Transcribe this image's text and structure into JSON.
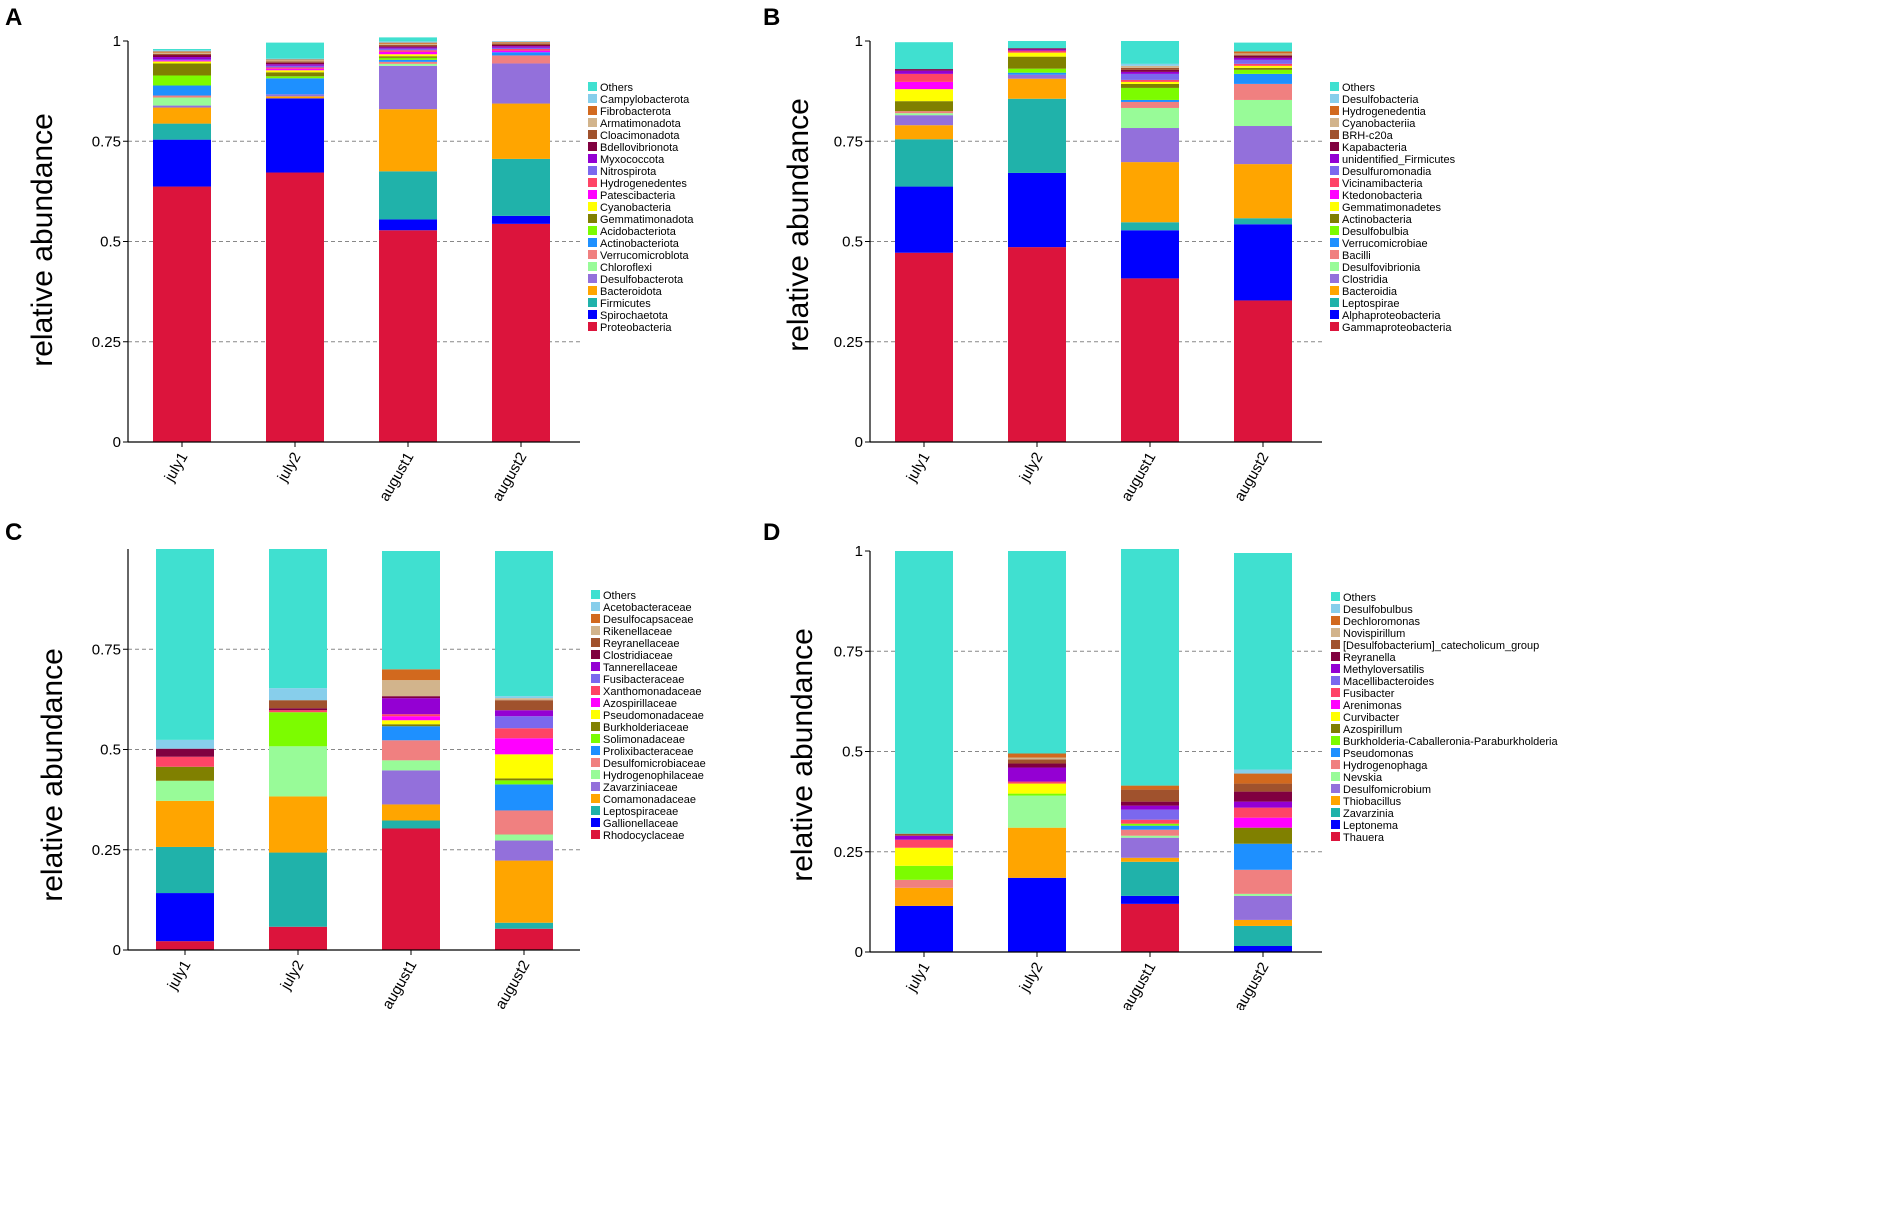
{
  "figure_panels": [
    "A",
    "B",
    "C",
    "D"
  ],
  "chart_data": [
    {
      "panel": "A",
      "type": "bar",
      "stacked": true,
      "ylabel": "relative abundance",
      "ylim": [
        0,
        1
      ],
      "yticks": [
        0,
        0.25,
        0.5,
        0.75,
        1
      ],
      "ytick_labels": [
        "0",
        "0.25",
        "0.5",
        "0.75",
        "1"
      ],
      "grid": "dashed",
      "legend_position": "right",
      "categories": [
        "july1",
        "july2",
        "august1",
        "august2"
      ],
      "series": [
        {
          "name": "Proteobacteria",
          "color": "#DC143C",
          "values": [
            0.637,
            0.672,
            0.528,
            0.544
          ]
        },
        {
          "name": "Spirochaetota",
          "color": "#0000FF",
          "values": [
            0.117,
            0.185,
            0.027,
            0.02
          ]
        },
        {
          "name": "Firmicutes",
          "color": "#20B2AA",
          "values": [
            0.04,
            0.0,
            0.12,
            0.142
          ]
        },
        {
          "name": "Bacteroidota",
          "color": "#FFA500",
          "values": [
            0.04,
            0.005,
            0.155,
            0.138
          ]
        },
        {
          "name": "Desulfobacterota",
          "color": "#9370DB",
          "values": [
            0.005,
            0.005,
            0.108,
            0.1
          ]
        },
        {
          "name": "Chloroflexi",
          "color": "#98FB98",
          "values": [
            0.02,
            0.0,
            0.005,
            0.0
          ]
        },
        {
          "name": "Verrucomicroblota",
          "color": "#F08080",
          "values": [
            0.005,
            0.0,
            0.005,
            0.02
          ]
        },
        {
          "name": "Actinobacteriota",
          "color": "#1E90FF",
          "values": [
            0.025,
            0.04,
            0.005,
            0.008
          ]
        },
        {
          "name": "Acidobacteriota",
          "color": "#7CFC00",
          "values": [
            0.025,
            0.005,
            0.005,
            0.0
          ]
        },
        {
          "name": "Gemmatimonadota",
          "color": "#808000",
          "values": [
            0.03,
            0.01,
            0.004,
            0.0
          ]
        },
        {
          "name": "Cyanobacteria",
          "color": "#FFFF00",
          "values": [
            0.005,
            0.005,
            0.005,
            0.0
          ]
        },
        {
          "name": "Patescibacteria",
          "color": "#FF00FF",
          "values": [
            0.003,
            0.004,
            0.006,
            0.004
          ]
        },
        {
          "name": "Hydrogenedentes",
          "color": "#FF4466",
          "values": [
            0.0,
            0.003,
            0.004,
            0.004
          ]
        },
        {
          "name": "Nitrospirota",
          "color": "#7B68EE",
          "values": [
            0.002,
            0.004,
            0.004,
            0.003
          ]
        },
        {
          "name": "Myxococcota",
          "color": "#9400D3",
          "values": [
            0.006,
            0.004,
            0.003,
            0.004
          ]
        },
        {
          "name": "Bdellovibrionota",
          "color": "#800040",
          "values": [
            0.005,
            0.004,
            0.003,
            0.003
          ]
        },
        {
          "name": "Cloacimonadota",
          "color": "#A0522D",
          "values": [
            0.003,
            0.003,
            0.003,
            0.004
          ]
        },
        {
          "name": "Armatimonadota",
          "color": "#D2B48C",
          "values": [
            0.003,
            0.003,
            0.003,
            0.002
          ]
        },
        {
          "name": "Fibrobacterota",
          "color": "#D2691E",
          "values": [
            0.003,
            0.002,
            0.003,
            0.002
          ]
        },
        {
          "name": "Campylobacterota",
          "color": "#87CEEB",
          "values": [
            0.003,
            0.002,
            0.003,
            0.002
          ]
        },
        {
          "name": "Others",
          "color": "#40E0D0",
          "values": [
            0.003,
            0.04,
            0.01,
            0.0
          ]
        }
      ]
    },
    {
      "panel": "B",
      "type": "bar",
      "stacked": true,
      "ylabel": "relative abundance",
      "ylim": [
        0,
        1
      ],
      "yticks": [
        0,
        0.25,
        0.5,
        0.75,
        1
      ],
      "ytick_labels": [
        "0",
        "0.25",
        "0.5",
        "0.75",
        "1"
      ],
      "grid": "dashed",
      "legend_position": "right",
      "categories": [
        "july1",
        "july2",
        "august1",
        "august2"
      ],
      "series": [
        {
          "name": "Gammaproteobacteria",
          "color": "#DC143C",
          "values": [
            0.472,
            0.486,
            0.408,
            0.353
          ]
        },
        {
          "name": "Alphaproteobacteria",
          "color": "#0000FF",
          "values": [
            0.165,
            0.185,
            0.12,
            0.19
          ]
        },
        {
          "name": "Leptospirae",
          "color": "#20B2AA",
          "values": [
            0.118,
            0.185,
            0.02,
            0.015
          ]
        },
        {
          "name": "Bacteroidia",
          "color": "#FFA500",
          "values": [
            0.035,
            0.05,
            0.15,
            0.135
          ]
        },
        {
          "name": "Clostridia",
          "color": "#9370DB",
          "values": [
            0.025,
            0.01,
            0.085,
            0.095
          ]
        },
        {
          "name": "Desulfovibrionia",
          "color": "#98FB98",
          "values": [
            0.005,
            0.0,
            0.05,
            0.065
          ]
        },
        {
          "name": "Bacilli",
          "color": "#F08080",
          "values": [
            0.005,
            0.0,
            0.015,
            0.04
          ]
        },
        {
          "name": "Verrucomicrobiae",
          "color": "#1E90FF",
          "values": [
            0.0,
            0.005,
            0.005,
            0.025
          ]
        },
        {
          "name": "Desulfobulbia",
          "color": "#7CFC00",
          "values": [
            0.0,
            0.01,
            0.03,
            0.01
          ]
        },
        {
          "name": "Actinobacteria",
          "color": "#808000",
          "values": [
            0.025,
            0.03,
            0.01,
            0.005
          ]
        },
        {
          "name": "Gemmatimonadetes",
          "color": "#FFFF00",
          "values": [
            0.03,
            0.01,
            0.005,
            0.005
          ]
        },
        {
          "name": "Ktedonobacteria",
          "color": "#FF00FF",
          "values": [
            0.018,
            0.0,
            0.0,
            0.0
          ]
        },
        {
          "name": "Vicinamibacteria",
          "color": "#FF4466",
          "values": [
            0.02,
            0.005,
            0.005,
            0.005
          ]
        },
        {
          "name": "Desulfuromonadia",
          "color": "#7B68EE",
          "values": [
            0.0,
            0.0,
            0.015,
            0.01
          ]
        },
        {
          "name": "unidentified_Firmicutes",
          "color": "#9400D3",
          "values": [
            0.008,
            0.003,
            0.005,
            0.005
          ]
        },
        {
          "name": "Kapabacteria",
          "color": "#800040",
          "values": [
            0.004,
            0.003,
            0.005,
            0.005
          ]
        },
        {
          "name": "BRH-c20a",
          "color": "#A0522D",
          "values": [
            0.0,
            0.0,
            0.005,
            0.003
          ]
        },
        {
          "name": "Cyanobacteriia",
          "color": "#D2B48C",
          "values": [
            0.0,
            0.0,
            0.005,
            0.003
          ]
        },
        {
          "name": "Hydrogenedentia",
          "color": "#D2691E",
          "values": [
            0.0,
            0.0,
            0.0,
            0.005
          ]
        },
        {
          "name": "Desulfobacteria",
          "color": "#87CEEB",
          "values": [
            0.0,
            0.0,
            0.005,
            0.0
          ]
        },
        {
          "name": "Others",
          "color": "#40E0D0",
          "values": [
            0.067,
            0.018,
            0.057,
            0.022
          ]
        }
      ]
    },
    {
      "panel": "C",
      "type": "bar",
      "stacked": true,
      "ylabel": "relative abundance",
      "ylim": [
        0,
        1
      ],
      "yticks": [
        0,
        0.25,
        0.5,
        0.75
      ],
      "ytick_labels": [
        "0",
        "0.25",
        "0.5",
        "0.75"
      ],
      "grid": "dashed",
      "legend_position": "right",
      "categories": [
        "july1",
        "july2",
        "august1",
        "august2"
      ],
      "series": [
        {
          "name": "Rhodocyclaceae",
          "color": "#DC143C",
          "values": [
            0.022,
            0.058,
            0.303,
            0.053
          ]
        },
        {
          "name": "Gallionellaceae",
          "color": "#0000FF",
          "values": [
            0.12,
            0.0,
            0.0,
            0.0
          ]
        },
        {
          "name": "Leptospiraceae",
          "color": "#20B2AA",
          "values": [
            0.115,
            0.185,
            0.02,
            0.015
          ]
        },
        {
          "name": "Comamonadaceae",
          "color": "#FFA500",
          "values": [
            0.115,
            0.14,
            0.04,
            0.155
          ]
        },
        {
          "name": "Zavarziniaceae",
          "color": "#9370DB",
          "values": [
            0.0,
            0.0,
            0.085,
            0.05
          ]
        },
        {
          "name": "Hydrogenophilaceae",
          "color": "#98FB98",
          "values": [
            0.05,
            0.125,
            0.025,
            0.015
          ]
        },
        {
          "name": "Desulfomicrobiaceae",
          "color": "#F08080",
          "values": [
            0.0,
            0.0,
            0.05,
            0.06
          ]
        },
        {
          "name": "Prolixibacteraceae",
          "color": "#1E90FF",
          "values": [
            0.0,
            0.0,
            0.035,
            0.065
          ]
        },
        {
          "name": "Solimonadaceae",
          "color": "#7CFC00",
          "values": [
            0.0,
            0.085,
            0.0,
            0.01
          ]
        },
        {
          "name": "Burkholderiaceae",
          "color": "#808000",
          "values": [
            0.035,
            0.0,
            0.005,
            0.005
          ]
        },
        {
          "name": "Pseudomonadaceae",
          "color": "#FFFF00",
          "values": [
            0.0,
            0.0,
            0.01,
            0.06
          ]
        },
        {
          "name": "Azospirillaceae",
          "color": "#FF00FF",
          "values": [
            0.0,
            0.0,
            0.01,
            0.04
          ]
        },
        {
          "name": "Xanthomonadaceae",
          "color": "#FF4466",
          "values": [
            0.025,
            0.005,
            0.005,
            0.025
          ]
        },
        {
          "name": "Fusibacteraceae",
          "color": "#7B68EE",
          "values": [
            0.0,
            0.0,
            0.0,
            0.03
          ]
        },
        {
          "name": "Tannerellaceae",
          "color": "#9400D3",
          "values": [
            0.0,
            0.0,
            0.04,
            0.015
          ]
        },
        {
          "name": "Clostridiaceae",
          "color": "#800040",
          "values": [
            0.02,
            0.005,
            0.005,
            0.0
          ]
        },
        {
          "name": "Reyranellaceae",
          "color": "#A0522D",
          "values": [
            0.0,
            0.02,
            0.0,
            0.025
          ]
        },
        {
          "name": "Rikenellaceae",
          "color": "#D2B48C",
          "values": [
            0.0,
            0.0,
            0.04,
            0.005
          ]
        },
        {
          "name": "Desulfocapsaceae",
          "color": "#D2691E",
          "values": [
            0.0,
            0.0,
            0.027,
            0.0
          ]
        },
        {
          "name": "Acetobacteraceae",
          "color": "#87CEEB",
          "values": [
            0.022,
            0.03,
            0.0,
            0.005
          ]
        },
        {
          "name": "Others",
          "color": "#40E0D0",
          "values": [
            0.476,
            0.347,
            0.295,
            0.362
          ]
        }
      ]
    },
    {
      "panel": "D",
      "type": "bar",
      "stacked": true,
      "ylabel": "relative abundance",
      "ylim": [
        0,
        1
      ],
      "yticks": [
        0,
        0.25,
        0.5,
        0.75,
        1
      ],
      "ytick_labels": [
        "0",
        "0.25",
        "0.5",
        "0.75",
        "1"
      ],
      "grid": "dashed",
      "legend_position": "right",
      "categories": [
        "july1",
        "july2",
        "august1",
        "august2"
      ],
      "series": [
        {
          "name": "Thauera",
          "color": "#DC143C",
          "values": [
            0.0,
            0.0,
            0.12,
            0.0
          ]
        },
        {
          "name": "Leptonema",
          "color": "#0000FF",
          "values": [
            0.115,
            0.185,
            0.02,
            0.015
          ]
        },
        {
          "name": "Zavarzinia",
          "color": "#20B2AA",
          "values": [
            0.0,
            0.0,
            0.085,
            0.05
          ]
        },
        {
          "name": "Thiobacillus",
          "color": "#FFA500",
          "values": [
            0.045,
            0.125,
            0.01,
            0.015
          ]
        },
        {
          "name": "Desulfomicrobium",
          "color": "#9370DB",
          "values": [
            0.0,
            0.0,
            0.05,
            0.06
          ]
        },
        {
          "name": "Nevskia",
          "color": "#98FB98",
          "values": [
            0.0,
            0.08,
            0.005,
            0.005
          ]
        },
        {
          "name": "Hydrogenophaga",
          "color": "#F08080",
          "values": [
            0.02,
            0.0,
            0.015,
            0.06
          ]
        },
        {
          "name": "Pseudomonas",
          "color": "#1E90FF",
          "values": [
            0.0,
            0.0,
            0.01,
            0.065
          ]
        },
        {
          "name": "Burkholderia-Caballeronia-Paraburkholderia",
          "color": "#7CFC00",
          "values": [
            0.035,
            0.005,
            0.005,
            0.0
          ]
        },
        {
          "name": "Azospirillum",
          "color": "#808000",
          "values": [
            0.0,
            0.0,
            0.0,
            0.04
          ]
        },
        {
          "name": "Curvibacter",
          "color": "#FFFF00",
          "values": [
            0.045,
            0.025,
            0.0,
            0.0
          ]
        },
        {
          "name": "Arenimonas",
          "color": "#FF00FF",
          "values": [
            0.0,
            0.0,
            0.0,
            0.025
          ]
        },
        {
          "name": "Fusibacter",
          "color": "#FF4466",
          "values": [
            0.02,
            0.005,
            0.01,
            0.025
          ]
        },
        {
          "name": "Macellibacteroides",
          "color": "#7B68EE",
          "values": [
            0.0,
            0.0,
            0.025,
            0.0
          ]
        },
        {
          "name": "Methyloversatilis",
          "color": "#9400D3",
          "values": [
            0.01,
            0.035,
            0.01,
            0.015
          ]
        },
        {
          "name": "Reyranella",
          "color": "#800040",
          "values": [
            0.0,
            0.01,
            0.01,
            0.025
          ]
        },
        {
          "name": "[Desulfobacterium]_catecholicum_group",
          "color": "#A0522D",
          "values": [
            0.005,
            0.01,
            0.03,
            0.02
          ]
        },
        {
          "name": "Novispirillum",
          "color": "#D2B48C",
          "values": [
            0.0,
            0.005,
            0.0,
            0.0
          ]
        },
        {
          "name": "Dechloromonas",
          "color": "#D2691E",
          "values": [
            0.0,
            0.01,
            0.01,
            0.025
          ]
        },
        {
          "name": "Desulfobulbus",
          "color": "#87CEEB",
          "values": [
            0.0,
            0.0,
            0.0,
            0.01
          ]
        },
        {
          "name": "Others",
          "color": "#40E0D0",
          "values": [
            0.705,
            0.505,
            0.59,
            0.54
          ]
        }
      ]
    }
  ]
}
